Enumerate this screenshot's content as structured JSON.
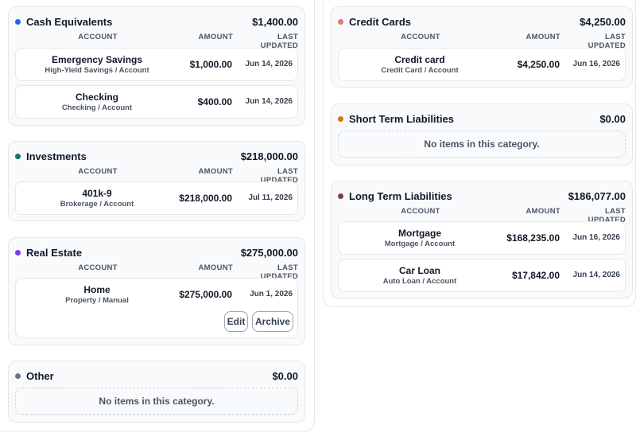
{
  "headers": {
    "account": "ACCOUNT",
    "amount": "AMOUNT",
    "last_updated": "LAST UPDATED"
  },
  "empty_text": "No items in this category.",
  "colors": {
    "cash": "#2563eb",
    "investments": "#0f766e",
    "real_estate": "#7c3aed",
    "other": "#64748b",
    "credit": "#e07b73",
    "short_term": "#d97706",
    "long_term": "#7f3b4a"
  },
  "cash": {
    "name": "Cash Equivalents",
    "total": "$1,400.00",
    "rows": [
      {
        "name": "Emergency Savings",
        "sub": "High-Yield Savings / Account",
        "amount": "$1,000.00",
        "date": "Jun 14, 2026"
      },
      {
        "name": "Checking",
        "sub": "Checking / Account",
        "amount": "$400.00",
        "date": "Jun 14, 2026"
      }
    ]
  },
  "investments": {
    "name": "Investments",
    "total": "$218,000.00",
    "rows": [
      {
        "name": "401k-9",
        "sub": "Brokerage / Account",
        "amount": "$218,000.00",
        "date": "Jul 11, 2026"
      }
    ]
  },
  "real_estate": {
    "name": "Real Estate",
    "total": "$275,000.00",
    "rows": [
      {
        "name": "Home",
        "sub": "Property / Manual",
        "amount": "$275,000.00",
        "date": "Jun 1, 2026"
      }
    ],
    "edit_label": "Edit",
    "archive_label": "Archive"
  },
  "other": {
    "name": "Other",
    "total": "$0.00"
  },
  "credit": {
    "name": "Credit Cards",
    "total": "$4,250.00",
    "rows": [
      {
        "name": "Credit card",
        "sub": "Credit Card / Account",
        "amount": "$4,250.00",
        "date": "Jun 16, 2026"
      }
    ]
  },
  "short_term": {
    "name": "Short Term Liabilities",
    "total": "$0.00"
  },
  "long_term": {
    "name": "Long Term Liabilities",
    "total": "$186,077.00",
    "rows": [
      {
        "name": "Mortgage",
        "sub": "Mortgage / Account",
        "amount": "$168,235.00",
        "date": "Jun 16, 2026"
      },
      {
        "name": "Car Loan",
        "sub": "Auto Loan / Account",
        "amount": "$17,842.00",
        "date": "Jun 14, 2026"
      }
    ]
  }
}
